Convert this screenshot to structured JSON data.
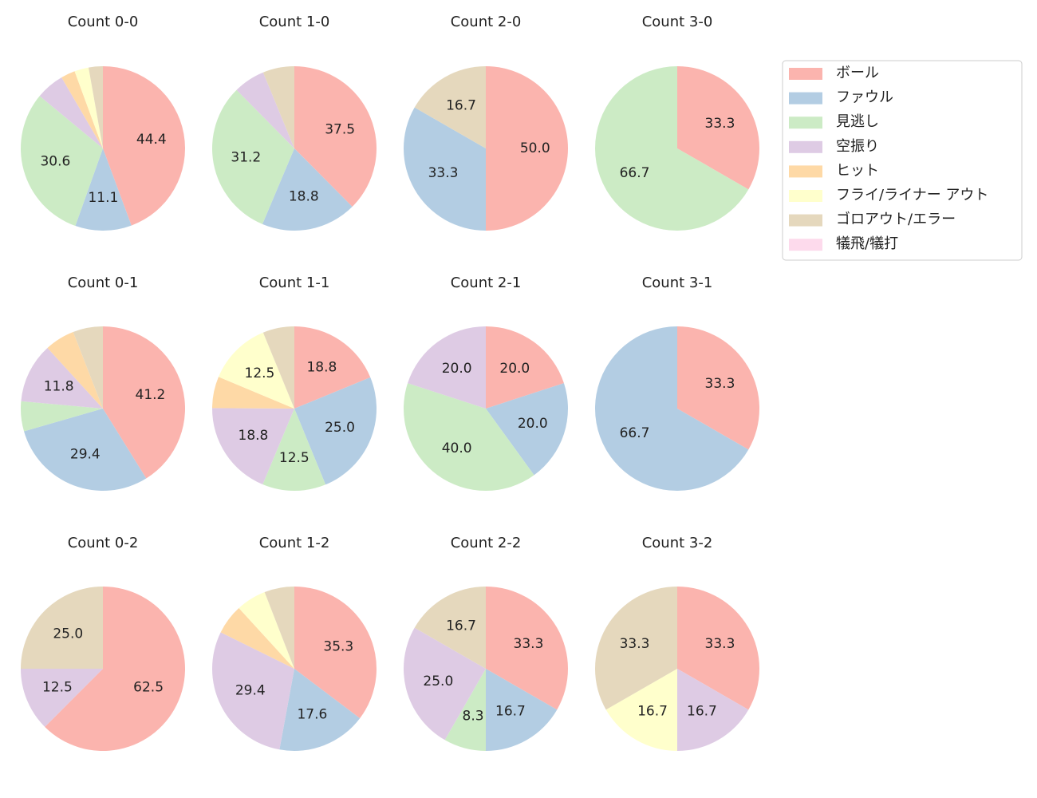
{
  "legend": {
    "labels": [
      "ボール",
      "ファウル",
      "見逃し",
      "空振り",
      "ヒット",
      "フライ/ライナー アウト",
      "ゴロアウト/エラー",
      "犠飛/犠打"
    ],
    "colors": [
      "#fbb4ae",
      "#b3cde3",
      "#ccebc5",
      "#decbe4",
      "#fed9a6",
      "#ffffcc",
      "#e5d8bd",
      "#fddaec"
    ]
  },
  "chart_data": [
    {
      "type": "pie",
      "title": "Count 0-0",
      "values": [
        44.4,
        11.1,
        30.6,
        5.6,
        2.8,
        2.8,
        2.8,
        0
      ],
      "value_labels": [
        "44.4",
        "11.1",
        "30.6",
        null,
        null,
        null,
        null,
        null
      ]
    },
    {
      "type": "pie",
      "title": "Count 1-0",
      "values": [
        37.5,
        18.8,
        31.2,
        6.2,
        0,
        0,
        6.2,
        0
      ],
      "value_labels": [
        "37.5",
        "18.8",
        "31.2",
        null,
        null,
        null,
        null,
        null
      ]
    },
    {
      "type": "pie",
      "title": "Count 2-0",
      "values": [
        50.0,
        33.3,
        0,
        0,
        0,
        0,
        16.7,
        0
      ],
      "value_labels": [
        "50.0",
        "33.3",
        null,
        null,
        null,
        null,
        "16.7",
        null
      ]
    },
    {
      "type": "pie",
      "title": "Count 3-0",
      "values": [
        33.3,
        0,
        66.7,
        0,
        0,
        0,
        0,
        0
      ],
      "value_labels": [
        "33.3",
        null,
        "66.7",
        null,
        null,
        null,
        null,
        null
      ]
    },
    {
      "type": "pie",
      "title": "Count 0-1",
      "values": [
        41.2,
        29.4,
        5.9,
        11.8,
        5.9,
        0,
        5.9,
        0
      ],
      "value_labels": [
        "41.2",
        "29.4",
        null,
        "11.8",
        null,
        null,
        null,
        null
      ]
    },
    {
      "type": "pie",
      "title": "Count 1-1",
      "values": [
        18.8,
        25.0,
        12.5,
        18.8,
        6.2,
        12.5,
        6.2,
        0
      ],
      "value_labels": [
        "18.8",
        "25.0",
        "12.5",
        "18.8",
        null,
        "12.5",
        null,
        null
      ]
    },
    {
      "type": "pie",
      "title": "Count 2-1",
      "values": [
        20.0,
        20.0,
        40.0,
        20.0,
        0,
        0,
        0,
        0
      ],
      "value_labels": [
        "20.0",
        "20.0",
        "40.0",
        "20.0",
        null,
        null,
        null,
        null
      ]
    },
    {
      "type": "pie",
      "title": "Count 3-1",
      "values": [
        33.3,
        66.7,
        0,
        0,
        0,
        0,
        0,
        0
      ],
      "value_labels": [
        "33.3",
        "66.7",
        null,
        null,
        null,
        null,
        null,
        null
      ]
    },
    {
      "type": "pie",
      "title": "Count 0-2",
      "values": [
        62.5,
        0,
        0,
        12.5,
        0,
        0,
        25.0,
        0
      ],
      "value_labels": [
        "62.5",
        null,
        null,
        "12.5",
        null,
        null,
        "25.0",
        null
      ]
    },
    {
      "type": "pie",
      "title": "Count 1-2",
      "values": [
        35.3,
        17.6,
        0,
        29.4,
        5.9,
        5.9,
        5.9,
        0
      ],
      "value_labels": [
        "35.3",
        "17.6",
        null,
        "29.4",
        null,
        null,
        null,
        null
      ]
    },
    {
      "type": "pie",
      "title": "Count 2-2",
      "values": [
        33.3,
        16.7,
        8.3,
        25.0,
        0,
        0,
        16.7,
        0
      ],
      "value_labels": [
        "33.3",
        "16.7",
        "8.3",
        "25.0",
        null,
        null,
        "16.7",
        null
      ]
    },
    {
      "type": "pie",
      "title": "Count 3-2",
      "values": [
        33.3,
        0,
        0,
        16.7,
        0,
        16.7,
        33.3,
        0
      ],
      "value_labels": [
        "33.3",
        null,
        null,
        "16.7",
        null,
        "16.7",
        "33.3",
        null
      ]
    }
  ]
}
